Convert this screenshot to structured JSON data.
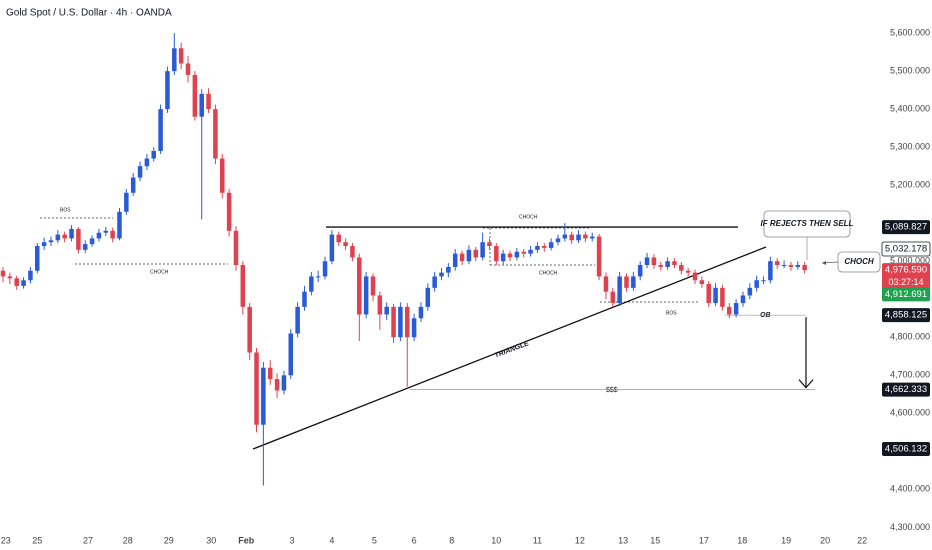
{
  "chart_data": {
    "type": "candlestick",
    "title": "Gold Spot / U.S. Dollar · 4h · OANDA",
    "up_color": "#2a5bd7",
    "down_color": "#e0414f",
    "grid": false,
    "xlim": [
      -0.44,
      128
    ],
    "ylim": [
      4280,
      5687
    ],
    "xticks": [
      {
        "value": 0.4,
        "label": "23"
      },
      {
        "value": 5,
        "label": "25"
      },
      {
        "value": 12.4,
        "label": "27"
      },
      {
        "value": 18.2,
        "label": "28"
      },
      {
        "value": 24.2,
        "label": "29"
      },
      {
        "value": 30.4,
        "label": "30"
      },
      {
        "value": 35.5,
        "label": "Feb"
      },
      {
        "value": 42.2,
        "label": "3"
      },
      {
        "value": 48,
        "label": "4"
      },
      {
        "value": 54.2,
        "label": "5"
      },
      {
        "value": 60,
        "label": "6"
      },
      {
        "value": 65.5,
        "label": "8"
      },
      {
        "value": 72,
        "label": "10"
      },
      {
        "value": 78,
        "label": "11"
      },
      {
        "value": 84.2,
        "label": "12"
      },
      {
        "value": 90.5,
        "label": "13"
      },
      {
        "value": 95.2,
        "label": "15"
      },
      {
        "value": 102.3,
        "label": "17"
      },
      {
        "value": 107.9,
        "label": "18"
      },
      {
        "value": 114.3,
        "label": "19"
      },
      {
        "value": 120,
        "label": "20"
      },
      {
        "value": 125.4,
        "label": "22"
      }
    ],
    "yticks": [
      {
        "value": 5600,
        "label": "5,600.000"
      },
      {
        "value": 5500,
        "label": "5,500.000"
      },
      {
        "value": 5400,
        "label": "5,400.000"
      },
      {
        "value": 5300,
        "label": "5,300.000"
      },
      {
        "value": 5200,
        "label": "5,200.000"
      },
      {
        "value": 5000,
        "label": "5,000.000"
      },
      {
        "value": 4800,
        "label": "4,800.000"
      },
      {
        "value": 4700,
        "label": "4,700.000"
      },
      {
        "value": 4600,
        "label": "4,600.000"
      },
      {
        "value": 4400,
        "label": "4,400.000"
      },
      {
        "value": 4300,
        "label": "4,300.000"
      }
    ],
    "candles": [
      [
        4975,
        4985,
        4945,
        4960
      ],
      [
        4960,
        4970,
        4940,
        4955
      ],
      [
        4955,
        4962,
        4925,
        4935
      ],
      [
        4935,
        4958,
        4928,
        4950
      ],
      [
        4950,
        4985,
        4942,
        4975
      ],
      [
        4975,
        5048,
        4968,
        5040
      ],
      [
        5040,
        5062,
        5030,
        5050
      ],
      [
        5050,
        5065,
        5040,
        5055
      ],
      [
        5055,
        5082,
        5048,
        5070
      ],
      [
        5070,
        5078,
        5050,
        5060
      ],
      [
        5060,
        5095,
        5052,
        5085
      ],
      [
        5085,
        5090,
        5020,
        5030
      ],
      [
        5030,
        5055,
        5022,
        5045
      ],
      [
        5045,
        5068,
        5038,
        5060
      ],
      [
        5060,
        5085,
        5052,
        5075
      ],
      [
        5075,
        5090,
        5066,
        5080
      ],
      [
        5080,
        5088,
        5050,
        5060
      ],
      [
        5060,
        5140,
        5055,
        5130
      ],
      [
        5130,
        5190,
        5122,
        5180
      ],
      [
        5180,
        5232,
        5172,
        5220
      ],
      [
        5220,
        5262,
        5210,
        5250
      ],
      [
        5250,
        5282,
        5240,
        5270
      ],
      [
        5270,
        5300,
        5262,
        5290
      ],
      [
        5290,
        5412,
        5282,
        5400
      ],
      [
        5400,
        5512,
        5390,
        5500
      ],
      [
        5500,
        5600,
        5490,
        5560
      ],
      [
        5560,
        5575,
        5505,
        5520
      ],
      [
        5520,
        5540,
        5470,
        5490
      ],
      [
        5490,
        5500,
        5370,
        5380
      ],
      [
        5380,
        5452,
        5110,
        5440
      ],
      [
        5440,
        5455,
        5390,
        5400
      ],
      [
        5400,
        5412,
        5255,
        5270
      ],
      [
        5270,
        5282,
        5165,
        5180
      ],
      [
        5180,
        5190,
        5065,
        5080
      ],
      [
        5080,
        5092,
        4975,
        4990
      ],
      [
        4990,
        5000,
        4860,
        4880
      ],
      [
        4880,
        4890,
        4740,
        4760
      ],
      [
        4760,
        4772,
        4550,
        4570
      ],
      [
        4570,
        4735,
        4410,
        4720
      ],
      [
        4720,
        4740,
        4675,
        4690
      ],
      [
        4690,
        4705,
        4640,
        4660
      ],
      [
        4660,
        4712,
        4650,
        4700
      ],
      [
        4700,
        4822,
        4690,
        4810
      ],
      [
        4810,
        4892,
        4800,
        4880
      ],
      [
        4880,
        4935,
        4870,
        4920
      ],
      [
        4920,
        4972,
        4910,
        4960
      ],
      [
        4960,
        4975,
        4945,
        4960
      ],
      [
        4960,
        5012,
        4952,
        5000
      ],
      [
        5000,
        5082,
        4992,
        5070
      ],
      [
        5070,
        5078,
        5040,
        5050
      ],
      [
        5050,
        5060,
        5030,
        5040
      ],
      [
        5040,
        5048,
        5000,
        5010
      ],
      [
        5010,
        5020,
        4790,
        4860
      ],
      [
        4860,
        4972,
        4850,
        4960
      ],
      [
        4960,
        4968,
        4895,
        4910
      ],
      [
        4910,
        4920,
        4820,
        4860
      ],
      [
        4860,
        4892,
        4845,
        4880
      ],
      [
        4880,
        4888,
        4785,
        4800
      ],
      [
        4800,
        4892,
        4790,
        4880
      ],
      [
        4880,
        4890,
        4670,
        4800
      ],
      [
        4800,
        4862,
        4790,
        4850
      ],
      [
        4850,
        4892,
        4840,
        4880
      ],
      [
        4880,
        4942,
        4870,
        4930
      ],
      [
        4930,
        4972,
        4920,
        4960
      ],
      [
        4960,
        4982,
        4950,
        4970
      ],
      [
        4970,
        4995,
        4958,
        4985
      ],
      [
        4985,
        5032,
        4975,
        5020
      ],
      [
        5020,
        5028,
        4990,
        5000
      ],
      [
        5000,
        5042,
        4992,
        5030
      ],
      [
        5030,
        5038,
        5000,
        5010
      ],
      [
        5010,
        5075,
        5002,
        5050
      ],
      [
        5050,
        5060,
        5030,
        5040
      ],
      [
        5040,
        5048,
        4990,
        5000
      ],
      [
        5000,
        5030,
        4992,
        5020
      ],
      [
        5020,
        5028,
        5000,
        5010
      ],
      [
        5010,
        5035,
        5002,
        5025
      ],
      [
        5025,
        5032,
        5010,
        5020
      ],
      [
        5020,
        5040,
        5012,
        5030
      ],
      [
        5030,
        5050,
        5022,
        5040
      ],
      [
        5040,
        5048,
        5025,
        5035
      ],
      [
        5035,
        5060,
        5028,
        5050
      ],
      [
        5050,
        5070,
        5042,
        5060
      ],
      [
        5060,
        5100,
        5052,
        5070
      ],
      [
        5070,
        5078,
        5045,
        5055
      ],
      [
        5055,
        5082,
        5048,
        5070
      ],
      [
        5070,
        5078,
        5050,
        5060
      ],
      [
        5060,
        5075,
        5052,
        5065
      ],
      [
        5065,
        5072,
        4950,
        4960
      ],
      [
        4960,
        4970,
        4900,
        4920
      ],
      [
        4920,
        4930,
        4880,
        4890
      ],
      [
        4890,
        4972,
        4882,
        4960
      ],
      [
        4960,
        4968,
        4920,
        4930
      ],
      [
        4930,
        4972,
        4922,
        4960
      ],
      [
        4960,
        5000,
        4950,
        4990
      ],
      [
        4990,
        5022,
        4982,
        5010
      ],
      [
        5010,
        5018,
        4980,
        4990
      ],
      [
        4990,
        4998,
        4975,
        4985
      ],
      [
        4985,
        5010,
        4978,
        5000
      ],
      [
        5000,
        5008,
        4982,
        4990
      ],
      [
        4990,
        4998,
        4965,
        4975
      ],
      [
        4975,
        4982,
        4960,
        4970
      ],
      [
        4970,
        4978,
        4940,
        4950
      ],
      [
        4950,
        4960,
        4930,
        4940
      ],
      [
        4940,
        4948,
        4880,
        4890
      ],
      [
        4890,
        4942,
        4882,
        4930
      ],
      [
        4930,
        4938,
        4870,
        4880
      ],
      [
        4880,
        4890,
        4850,
        4860
      ],
      [
        4860,
        4900,
        4852,
        4890
      ],
      [
        4890,
        4920,
        4880,
        4910
      ],
      [
        4910,
        4942,
        4900,
        4930
      ],
      [
        4930,
        4962,
        4920,
        4950
      ],
      [
        4950,
        4960,
        4940,
        4950
      ],
      [
        4950,
        5012,
        4942,
        5000
      ],
      [
        5000,
        5008,
        4980,
        4990
      ],
      [
        4990,
        5002,
        4982,
        4990
      ],
      [
        4990,
        4998,
        4975,
        4985
      ],
      [
        4985,
        5000,
        4978,
        4990
      ],
      [
        4990,
        4998,
        4968,
        4976.59
      ]
    ],
    "price_labels": [
      {
        "value": 5089.827,
        "label": "5,089.827",
        "color": "#131722"
      },
      {
        "value": 5032.178,
        "label": "5,032.178",
        "color": "#ffffff"
      },
      {
        "value": 4976.59,
        "label": "4,976.590",
        "color": "#e0414f"
      },
      {
        "value": 4912.691,
        "label": "4,912.691",
        "color": "#22a052"
      },
      {
        "value": 4858.125,
        "label": "4,858.125",
        "color": "#131722"
      },
      {
        "value": 4662.333,
        "label": "4,662.333",
        "color": "#131722"
      },
      {
        "value": 4506.132,
        "label": "4,506.132",
        "color": "#131722"
      }
    ],
    "countdown": "03:27:14",
    "annotations": [
      "BOS",
      "CHOCH",
      "CHOCH",
      "CHOCH",
      "$$$",
      "BOS",
      "OB",
      "TRIANGLE",
      "IF REJECTS THEN SELL",
      "CHOCH"
    ]
  }
}
